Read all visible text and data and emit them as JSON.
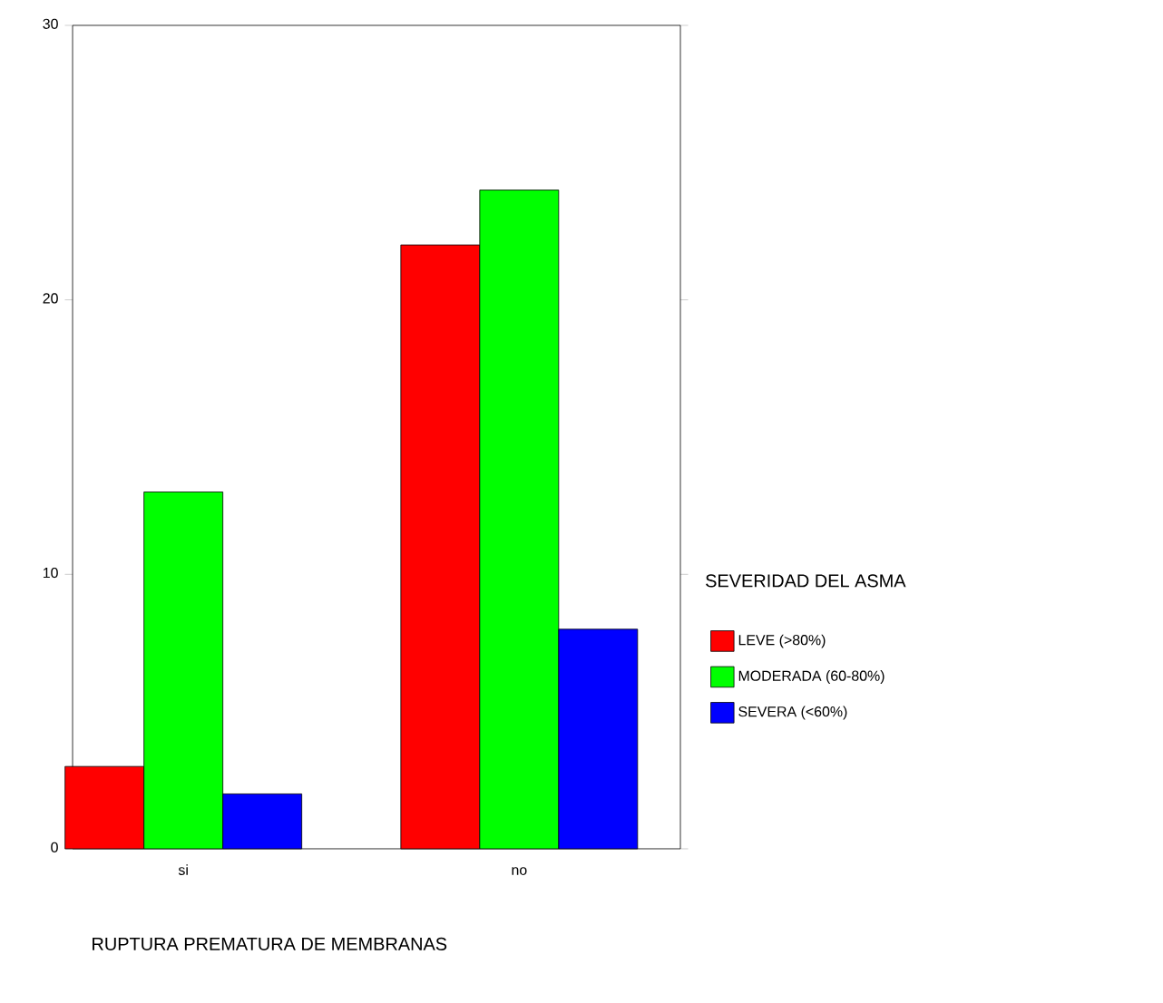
{
  "chart_data": {
    "type": "bar",
    "categories": [
      "si",
      "no"
    ],
    "series": [
      {
        "name": "LEVE (>80%)",
        "color": "#ff0000",
        "values": [
          3,
          22
        ]
      },
      {
        "name": "MODERADA (60-80%)",
        "color": "#00ff00",
        "values": [
          13,
          24
        ]
      },
      {
        "name": "SEVERA (<60%)",
        "color": "#0000ff",
        "values": [
          2,
          8
        ]
      }
    ],
    "xlabel": "RUPTURA PREMATURA DE MEMBRANAS",
    "legend_title": "SEVERIDAD DEL ASMA",
    "legend": "right",
    "ylim": [
      0,
      30
    ],
    "yticks": [
      0,
      10,
      20,
      30
    ],
    "grid": false
  }
}
